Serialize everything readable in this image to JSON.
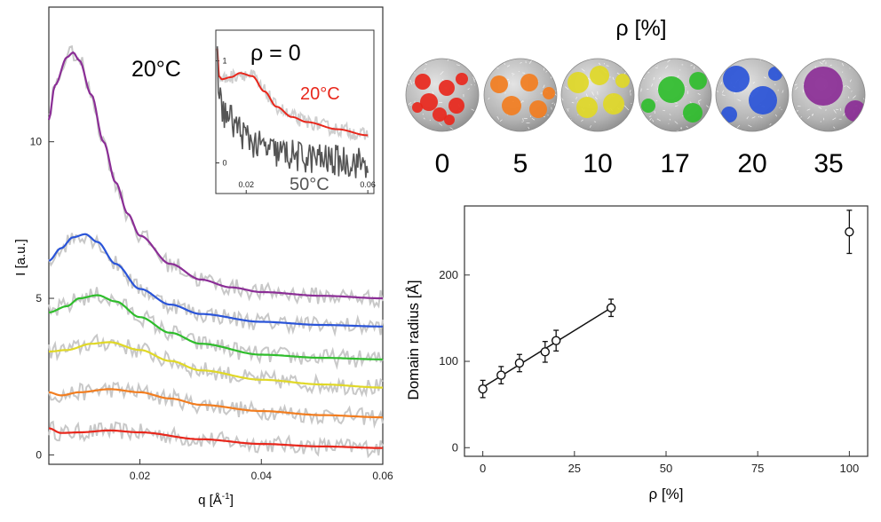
{
  "chart_data": [
    {
      "type": "line",
      "title": "20°C",
      "xlabel": "q [Å",
      "xlabel_sup": "-1",
      "xlabel_end": "]",
      "ylabel": "I [a.u.]",
      "xlim": [
        0.005,
        0.06
      ],
      "ylim": [
        -0.3,
        14.3
      ],
      "xticks": [
        0.02,
        0.04,
        0.06
      ],
      "xtick_labels": [
        "0.02",
        "0.04",
        "0.06"
      ],
      "yticks": [
        0,
        5,
        10
      ],
      "ytick_labels": [
        "0",
        "5",
        "10"
      ],
      "series": [
        {
          "name": "0",
          "color": "#e8271c",
          "offset": 0.0,
          "fit": [
            [
              0.005,
              0.85
            ],
            [
              0.007,
              0.7
            ],
            [
              0.01,
              0.72
            ],
            [
              0.015,
              0.78
            ],
            [
              0.02,
              0.72
            ],
            [
              0.03,
              0.5
            ],
            [
              0.04,
              0.35
            ],
            [
              0.05,
              0.27
            ],
            [
              0.06,
              0.22
            ]
          ]
        },
        {
          "name": "5",
          "color": "#f27d1f",
          "offset": 1.2,
          "fit": [
            [
              0.005,
              2.0
            ],
            [
              0.007,
              1.9
            ],
            [
              0.01,
              2.0
            ],
            [
              0.015,
              2.1
            ],
            [
              0.02,
              2.0
            ],
            [
              0.025,
              1.8
            ],
            [
              0.03,
              1.6
            ],
            [
              0.04,
              1.4
            ],
            [
              0.05,
              1.27
            ],
            [
              0.06,
              1.2
            ]
          ]
        },
        {
          "name": "10",
          "color": "#e0d827",
          "offset": 2.1,
          "fit": [
            [
              0.005,
              3.3
            ],
            [
              0.008,
              3.35
            ],
            [
              0.012,
              3.55
            ],
            [
              0.015,
              3.6
            ],
            [
              0.02,
              3.35
            ],
            [
              0.025,
              3.0
            ],
            [
              0.03,
              2.7
            ],
            [
              0.04,
              2.4
            ],
            [
              0.05,
              2.25
            ],
            [
              0.06,
              2.15
            ]
          ]
        },
        {
          "name": "17",
          "color": "#2fbd2c",
          "offset": 3.0,
          "fit": [
            [
              0.005,
              4.55
            ],
            [
              0.008,
              4.75
            ],
            [
              0.01,
              5.0
            ],
            [
              0.013,
              5.1
            ],
            [
              0.016,
              4.9
            ],
            [
              0.02,
              4.4
            ],
            [
              0.025,
              3.9
            ],
            [
              0.03,
              3.55
            ],
            [
              0.04,
              3.2
            ],
            [
              0.05,
              3.1
            ],
            [
              0.06,
              3.05
            ]
          ]
        },
        {
          "name": "20",
          "color": "#2a54d8",
          "offset": 4.0,
          "fit": [
            [
              0.005,
              6.2
            ],
            [
              0.007,
              6.6
            ],
            [
              0.009,
              6.95
            ],
            [
              0.011,
              7.05
            ],
            [
              0.013,
              6.8
            ],
            [
              0.016,
              6.1
            ],
            [
              0.02,
              5.3
            ],
            [
              0.025,
              4.8
            ],
            [
              0.03,
              4.5
            ],
            [
              0.04,
              4.25
            ],
            [
              0.05,
              4.15
            ],
            [
              0.06,
              4.1
            ]
          ]
        },
        {
          "name": "35",
          "color": "#8b2e96",
          "offset": 4.9,
          "fit": [
            [
              0.005,
              10.7
            ],
            [
              0.006,
              11.8
            ],
            [
              0.008,
              12.7
            ],
            [
              0.009,
              12.85
            ],
            [
              0.01,
              12.6
            ],
            [
              0.012,
              11.5
            ],
            [
              0.014,
              10.0
            ],
            [
              0.016,
              8.7
            ],
            [
              0.018,
              7.7
            ],
            [
              0.02,
              7.0
            ],
            [
              0.025,
              6.1
            ],
            [
              0.03,
              5.6
            ],
            [
              0.035,
              5.35
            ],
            [
              0.04,
              5.2
            ],
            [
              0.05,
              5.08
            ],
            [
              0.06,
              5.0
            ]
          ]
        }
      ]
    },
    {
      "type": "line",
      "title": "ρ = 0",
      "xlim": [
        0.01,
        0.062
      ],
      "ylim": [
        -0.3,
        1.3
      ],
      "xticks": [
        0.02,
        0.06
      ],
      "xtick_labels": [
        "0.02",
        "0.06"
      ],
      "yticks": [
        0,
        1
      ],
      "ytick_labels": [
        "0",
        "1"
      ],
      "series": [
        {
          "name": "20°C",
          "color": "#e8271c",
          "fit": [
            [
              0.0105,
              1.12
            ],
            [
              0.011,
              0.85
            ],
            [
              0.012,
              0.82
            ],
            [
              0.015,
              0.84
            ],
            [
              0.018,
              0.88
            ],
            [
              0.022,
              0.85
            ],
            [
              0.026,
              0.7
            ],
            [
              0.03,
              0.55
            ],
            [
              0.035,
              0.45
            ],
            [
              0.04,
              0.4
            ],
            [
              0.05,
              0.33
            ],
            [
              0.06,
              0.27
            ]
          ]
        },
        {
          "name": "50°C",
          "color": "#555555",
          "fit": [
            [
              0.0105,
              1.15
            ],
            [
              0.011,
              0.7
            ],
            [
              0.012,
              0.52
            ],
            [
              0.014,
              0.45
            ],
            [
              0.017,
              0.35
            ],
            [
              0.02,
              0.25
            ],
            [
              0.025,
              0.15
            ],
            [
              0.03,
              0.1
            ],
            [
              0.04,
              0.05
            ],
            [
              0.05,
              0.02
            ],
            [
              0.06,
              0.0
            ]
          ]
        }
      ]
    },
    {
      "type": "scatter",
      "xlabel": "ρ [%]",
      "ylabel": "Domain radius [Å]",
      "xlim": [
        -5,
        105
      ],
      "ylim": [
        -10,
        280
      ],
      "xticks": [
        0,
        25,
        50,
        75,
        100
      ],
      "xtick_labels": [
        "0",
        "25",
        "50",
        "75",
        "100"
      ],
      "yticks": [
        0,
        100,
        200
      ],
      "ytick_labels": [
        "0",
        "100",
        "200"
      ],
      "points": [
        {
          "x": 0,
          "y": 68,
          "err": 10
        },
        {
          "x": 5,
          "y": 84,
          "err": 10
        },
        {
          "x": 10,
          "y": 98,
          "err": 10
        },
        {
          "x": 17,
          "y": 111,
          "err": 12
        },
        {
          "x": 20,
          "y": 124,
          "err": 12
        },
        {
          "x": 35,
          "y": 162,
          "err": 10
        },
        {
          "x": 100,
          "y": 250,
          "err": 25
        }
      ],
      "fit_line": [
        [
          0,
          70
        ],
        [
          35,
          162
        ]
      ]
    }
  ],
  "spheres": {
    "title": "ρ [%]",
    "items": [
      {
        "label": "0",
        "color": "#e8271c"
      },
      {
        "label": "5",
        "color": "#f27d1f"
      },
      {
        "label": "10",
        "color": "#e0d827"
      },
      {
        "label": "17",
        "color": "#2fbd2c"
      },
      {
        "label": "20",
        "color": "#2a54d8"
      },
      {
        "label": "35",
        "color": "#8b2e96"
      }
    ]
  }
}
